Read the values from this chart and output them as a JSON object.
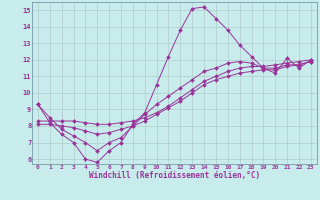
{
  "xlabel": "Windchill (Refroidissement éolien,°C)",
  "background_color": "#c8ecec",
  "line_color": "#993399",
  "grid_color": "#b0cccc",
  "spine_color": "#7799aa",
  "xlim": [
    -0.5,
    23.5
  ],
  "ylim": [
    5.7,
    15.5
  ],
  "xticks": [
    0,
    1,
    2,
    3,
    4,
    5,
    6,
    7,
    8,
    9,
    10,
    11,
    12,
    13,
    14,
    15,
    16,
    17,
    18,
    19,
    20,
    21,
    22,
    23
  ],
  "yticks": [
    6,
    7,
    8,
    9,
    10,
    11,
    12,
    13,
    14,
    15
  ],
  "series": [
    [
      9.3,
      8.2,
      7.5,
      7.0,
      6.0,
      5.8,
      6.5,
      7.0,
      8.1,
      8.8,
      10.5,
      12.2,
      13.8,
      15.1,
      15.2,
      14.5,
      13.8,
      12.9,
      12.2,
      11.5,
      11.2,
      12.1,
      11.5,
      12.0
    ],
    [
      8.3,
      8.3,
      8.3,
      8.3,
      8.2,
      8.1,
      8.1,
      8.2,
      8.3,
      8.5,
      8.8,
      9.2,
      9.7,
      10.2,
      10.7,
      11.0,
      11.3,
      11.5,
      11.6,
      11.6,
      11.7,
      11.8,
      11.9,
      12.0
    ],
    [
      8.1,
      8.1,
      8.0,
      7.9,
      7.7,
      7.5,
      7.6,
      7.8,
      8.0,
      8.3,
      8.7,
      9.1,
      9.5,
      10.0,
      10.5,
      10.8,
      11.0,
      11.2,
      11.3,
      11.4,
      11.4,
      11.6,
      11.7,
      11.9
    ],
    [
      9.3,
      8.5,
      7.8,
      7.4,
      7.0,
      6.5,
      7.0,
      7.3,
      8.0,
      8.7,
      9.3,
      9.8,
      10.3,
      10.8,
      11.3,
      11.5,
      11.8,
      11.9,
      11.8,
      11.5,
      11.5,
      11.7,
      11.7,
      11.9
    ]
  ]
}
